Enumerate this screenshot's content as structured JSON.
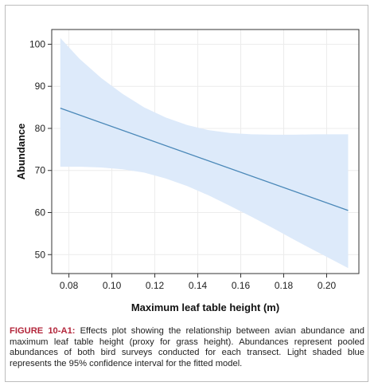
{
  "caption": {
    "label": "FIGURE 10-A1:",
    "text": " Effects plot showing the relationship between avian abundance and maximum leaf table height (proxy for grass height). Abundances represent pooled abundances of both bird surveys conducted for each transect. Light shaded blue represents the 95% confidence interval for the fitted model."
  },
  "chart_data": {
    "type": "line",
    "xlabel": "Maximum leaf table height (m)",
    "ylabel": "Abundance",
    "xlim": [
      0.072,
      0.215
    ],
    "ylim": [
      45.5,
      103.5
    ],
    "x_ticks": [
      0.08,
      0.1,
      0.12,
      0.14,
      0.16,
      0.18,
      0.2
    ],
    "x_tick_labels": [
      "0.08",
      "0.10",
      "0.12",
      "0.14",
      "0.16",
      "0.18",
      "0.20"
    ],
    "y_ticks": [
      50,
      60,
      70,
      80,
      90,
      100
    ],
    "y_tick_labels": [
      "50",
      "60",
      "70",
      "80",
      "90",
      "100"
    ],
    "grid": true,
    "fit": {
      "x": [
        0.076,
        0.21
      ],
      "y": [
        84.8,
        60.5
      ]
    },
    "confidence_band": {
      "x": [
        0.076,
        0.085,
        0.095,
        0.105,
        0.115,
        0.125,
        0.135,
        0.145,
        0.155,
        0.165,
        0.175,
        0.185,
        0.195,
        0.21
      ],
      "upper": [
        101.5,
        96.5,
        92.0,
        88.2,
        85.0,
        82.6,
        80.8,
        79.6,
        78.9,
        78.6,
        78.5,
        78.5,
        78.6,
        78.6
      ],
      "lower": [
        70.9,
        70.9,
        70.7,
        70.3,
        69.5,
        68.1,
        66.3,
        64.1,
        61.6,
        59.0,
        56.3,
        53.5,
        50.8,
        46.8
      ]
    },
    "colors": {
      "band": "#ddeafa",
      "line": "#4a88b8",
      "grid": "#ececec",
      "axis": "#333333"
    }
  }
}
